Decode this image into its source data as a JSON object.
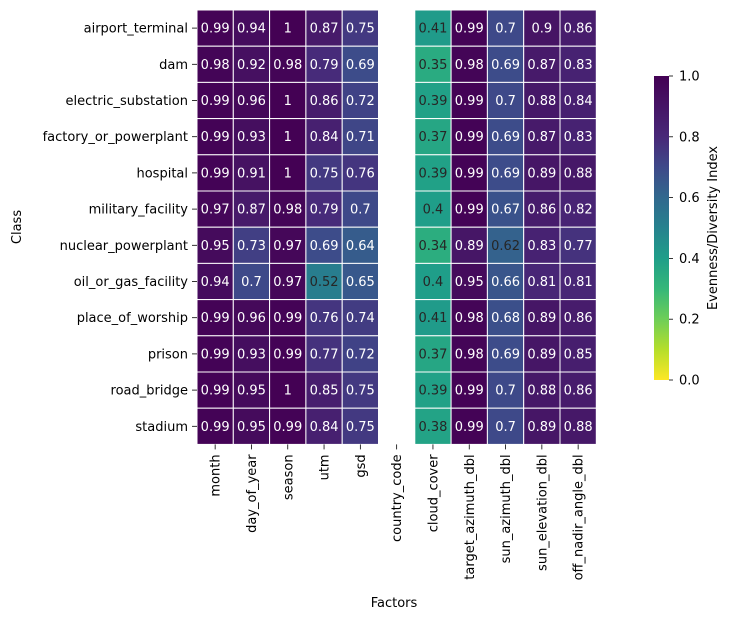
{
  "chart_data": {
    "type": "heatmap",
    "xlabel": "Factors",
    "ylabel": "Class",
    "rows": [
      "airport_terminal",
      "dam",
      "electric_substation",
      "factory_or_powerplant",
      "hospital",
      "military_facility",
      "nuclear_powerplant",
      "oil_or_gas_facility",
      "place_of_worship",
      "prison",
      "road_bridge",
      "stadium"
    ],
    "columns": [
      "month",
      "day_of_year",
      "season",
      "utm",
      "gsd",
      "country_code",
      "cloud_cover",
      "target_azimuth_dbl",
      "sun_azimuth_dbl",
      "sun_elevation_dbl",
      "off_nadir_angle_dbl"
    ],
    "values": [
      [
        0.99,
        0.94,
        1,
        0.87,
        0.75,
        null,
        0.41,
        0.99,
        0.7,
        0.9,
        0.86
      ],
      [
        0.98,
        0.92,
        0.98,
        0.79,
        0.69,
        null,
        0.35,
        0.98,
        0.69,
        0.87,
        0.83
      ],
      [
        0.99,
        0.96,
        1,
        0.86,
        0.72,
        null,
        0.39,
        0.99,
        0.7,
        0.88,
        0.84
      ],
      [
        0.99,
        0.93,
        1,
        0.84,
        0.71,
        null,
        0.37,
        0.99,
        0.69,
        0.87,
        0.83
      ],
      [
        0.99,
        0.91,
        1,
        0.75,
        0.76,
        null,
        0.39,
        0.99,
        0.69,
        0.89,
        0.88
      ],
      [
        0.97,
        0.87,
        0.98,
        0.79,
        0.7,
        null,
        0.4,
        0.99,
        0.67,
        0.86,
        0.82
      ],
      [
        0.95,
        0.73,
        0.97,
        0.69,
        0.64,
        null,
        0.34,
        0.89,
        0.62,
        0.83,
        0.77
      ],
      [
        0.94,
        0.7,
        0.97,
        0.52,
        0.65,
        null,
        0.4,
        0.95,
        0.66,
        0.81,
        0.81
      ],
      [
        0.99,
        0.96,
        0.99,
        0.76,
        0.74,
        null,
        0.41,
        0.98,
        0.68,
        0.89,
        0.86
      ],
      [
        0.99,
        0.93,
        0.99,
        0.77,
        0.72,
        null,
        0.37,
        0.98,
        0.69,
        0.89,
        0.85
      ],
      [
        0.99,
        0.95,
        1,
        0.85,
        0.75,
        null,
        0.39,
        0.99,
        0.7,
        0.88,
        0.86
      ],
      [
        0.99,
        0.95,
        0.99,
        0.84,
        0.75,
        null,
        0.38,
        0.99,
        0.7,
        0.89,
        0.88
      ]
    ],
    "colormap": "viridis",
    "vmin": 0,
    "vmax": 1,
    "colorbar": {
      "label": "Evenness/Diversity Index",
      "ticks": [
        "0.0",
        "0.2",
        "0.4",
        "0.6",
        "0.8",
        "1.0"
      ],
      "position": "right"
    },
    "grid": false,
    "annotations": "cell values shown in each cell"
  }
}
